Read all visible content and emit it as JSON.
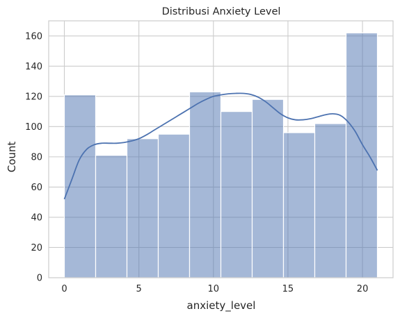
{
  "chart_data": {
    "type": "bar",
    "title": "Distribusi Anxiety Level",
    "xlabel": "anxiety_level",
    "ylabel": "Count",
    "bins": [
      {
        "x0": 0.0,
        "x1": 2.1,
        "count": 121
      },
      {
        "x0": 2.1,
        "x1": 4.2,
        "count": 81
      },
      {
        "x0": 4.2,
        "x1": 6.3,
        "count": 92
      },
      {
        "x0": 6.3,
        "x1": 8.4,
        "count": 95
      },
      {
        "x0": 8.4,
        "x1": 10.5,
        "count": 123
      },
      {
        "x0": 10.5,
        "x1": 12.6,
        "count": 110
      },
      {
        "x0": 12.6,
        "x1": 14.7,
        "count": 118
      },
      {
        "x0": 14.7,
        "x1": 16.8,
        "count": 96
      },
      {
        "x0": 16.8,
        "x1": 18.9,
        "count": 102
      },
      {
        "x0": 18.9,
        "x1": 21.0,
        "count": 162
      }
    ],
    "kde": {
      "x": [
        0,
        0.5,
        1,
        1.5,
        2,
        2.5,
        3,
        3.5,
        4,
        4.5,
        5,
        5.5,
        6,
        6.5,
        7,
        7.5,
        8,
        8.5,
        9,
        9.5,
        10,
        10.5,
        11,
        11.5,
        12,
        12.5,
        13,
        13.5,
        14,
        14.5,
        15,
        15.5,
        16,
        16.5,
        17,
        17.5,
        18,
        18.5,
        19,
        19.5,
        20,
        20.5,
        21
      ],
      "y": [
        52,
        65,
        78,
        85,
        88,
        89,
        89,
        89,
        89.5,
        90.5,
        92,
        94.5,
        97.5,
        100.5,
        103.5,
        106.5,
        109.5,
        112.5,
        115.5,
        118,
        120,
        121,
        121.7,
        122,
        122,
        121.3,
        119.5,
        116.5,
        112.5,
        108.5,
        105.8,
        104.5,
        104.5,
        105.2,
        106.5,
        107.8,
        108.5,
        107.5,
        103.5,
        97,
        88,
        80,
        71
      ]
    },
    "xlim": [
      -1.05,
      22.05
    ],
    "ylim": [
      0,
      170
    ],
    "xticks": [
      0,
      5,
      10,
      15,
      20
    ],
    "yticks": [
      0,
      20,
      40,
      60,
      80,
      100,
      120,
      140,
      160
    ],
    "grid": true,
    "colors": {
      "bar_fill": "#4c72b0",
      "bar_fill_opacity": 0.5,
      "bar_edge": "#ffffff",
      "kde_line": "#4c72b0",
      "grid": "#cccccc",
      "spine": "#cccccc"
    }
  }
}
